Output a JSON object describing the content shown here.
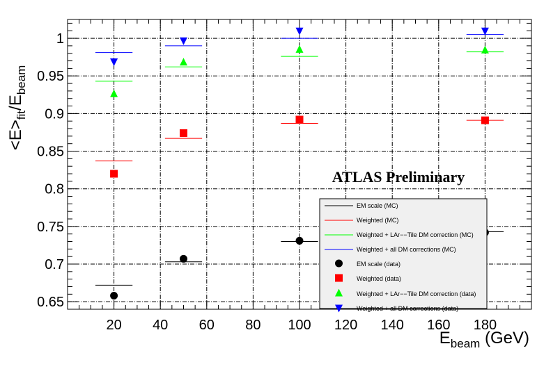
{
  "chart_data": {
    "type": "scatter",
    "title": "",
    "annotation": "ATLAS Preliminary",
    "ylabel_main": "<E>",
    "ylabel_sub1": "fit",
    "ylabel_mid": "/E",
    "ylabel_sub2": "beam",
    "xlabel_main": "E",
    "xlabel_sub": "beam",
    "xlabel_unit": " (GeV)",
    "xlim": [
      0,
      200
    ],
    "ylim": [
      0.64,
      1.025
    ],
    "grid": true,
    "legend_position": "bottom-right",
    "x_ticks": [
      20,
      40,
      60,
      80,
      100,
      120,
      140,
      160,
      180
    ],
    "y_ticks": [
      0.65,
      0.7,
      0.75,
      0.8,
      0.85,
      0.9,
      0.95,
      1.0
    ],
    "x_tick_labels": [
      "20",
      "40",
      "60",
      "80",
      "100",
      "120",
      "140",
      "160",
      "180"
    ],
    "y_tick_labels": [
      "0.65",
      "0.7",
      "0.75",
      "0.8",
      "0.85",
      "0.9",
      "0.95",
      "1"
    ],
    "mc_series": [
      {
        "name": "EM scale (MC)",
        "color": "#000000",
        "x": [
          20,
          50,
          100,
          180
        ],
        "y": [
          0.672,
          0.703,
          0.73,
          0.743
        ],
        "halfwidth": [
          8,
          8,
          8,
          8
        ]
      },
      {
        "name": "Weighted (MC)",
        "color": "#ff0000",
        "x": [
          20,
          50,
          100,
          180
        ],
        "y": [
          0.837,
          0.867,
          0.887,
          0.891
        ],
        "halfwidth": [
          8,
          8,
          8,
          8
        ]
      },
      {
        "name": "Weighted + LAr−−Tile DM correction (MC)",
        "color": "#00ff00",
        "x": [
          20,
          50,
          100,
          180
        ],
        "y": [
          0.943,
          0.962,
          0.976,
          0.982
        ],
        "halfwidth": [
          8,
          8,
          8,
          8
        ]
      },
      {
        "name": "Weighted + all DM corrections (MC)",
        "color": "#0000ff",
        "x": [
          20,
          50,
          100,
          180
        ],
        "y": [
          0.981,
          0.99,
          1.0,
          1.005
        ],
        "halfwidth": [
          8,
          8,
          8,
          8
        ]
      }
    ],
    "data_series": [
      {
        "name": "EM scale (data)",
        "color": "#000000",
        "marker": "circle",
        "x": [
          20,
          50,
          100,
          180
        ],
        "y": [
          0.658,
          0.707,
          0.731,
          0.742
        ]
      },
      {
        "name": "Weighted (data)",
        "color": "#ff0000",
        "marker": "square",
        "x": [
          20,
          50,
          100,
          180
        ],
        "y": [
          0.82,
          0.874,
          0.892,
          0.891
        ]
      },
      {
        "name": "Weighted + LAr−−Tile DM correction (data)",
        "color": "#00ff00",
        "marker": "triangle-up",
        "x": [
          20,
          50,
          100,
          180
        ],
        "y": [
          0.926,
          0.968,
          0.985,
          0.984
        ]
      },
      {
        "name": "Weighted + all DM corrections (data)",
        "color": "#0000ff",
        "marker": "triangle-down",
        "x": [
          20,
          50,
          100,
          180
        ],
        "y": [
          0.969,
          0.997,
          1.01,
          1.01
        ]
      }
    ]
  }
}
